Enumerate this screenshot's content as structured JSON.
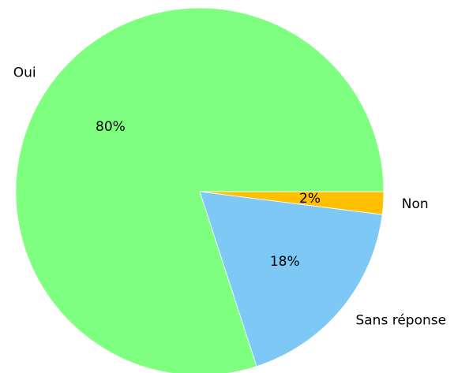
{
  "chart_data": {
    "type": "pie",
    "title": "",
    "slices": [
      {
        "label": "Non",
        "value": 2,
        "display": "2%",
        "color": "#ffc000"
      },
      {
        "label": "Sans réponse",
        "value": 18,
        "display": "18%",
        "color": "#7ec8f5"
      },
      {
        "label": "Oui",
        "value": 80,
        "display": "80%",
        "color": "#7fff7f"
      }
    ],
    "start_angle_deg": 0,
    "direction": "clockwise",
    "legend": "none"
  }
}
